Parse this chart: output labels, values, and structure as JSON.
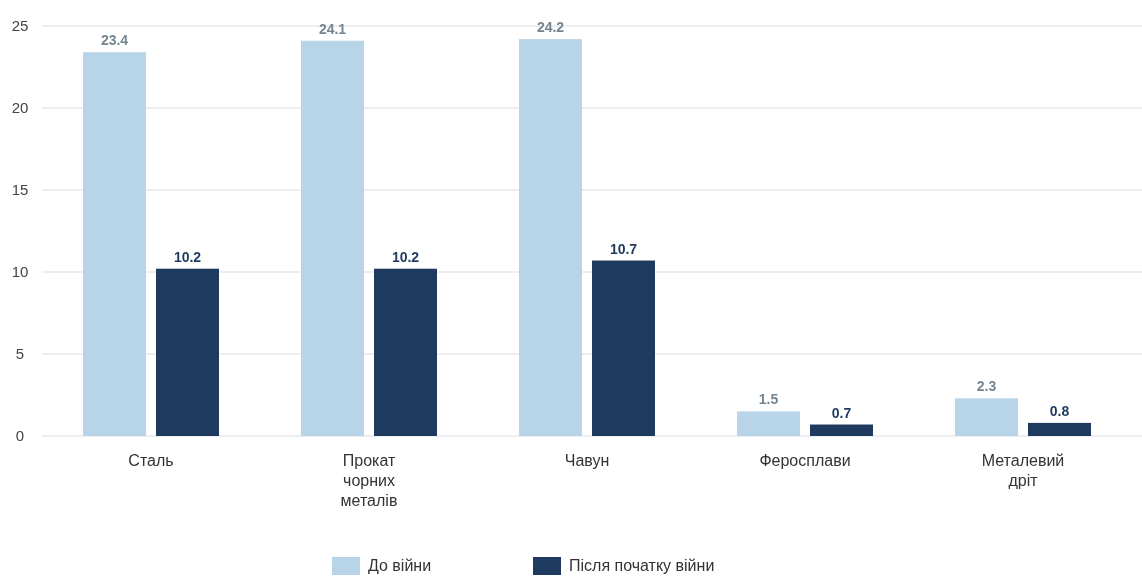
{
  "chart_data": {
    "type": "bar",
    "categories": [
      "Сталь",
      "Прокат чорних металів",
      "Чавун",
      "Феросплави",
      "Металевий дріт"
    ],
    "series": [
      {
        "name": "До війни",
        "color": "#b8d4e8",
        "values": [
          23.4,
          24.1,
          24.2,
          1.5,
          2.3
        ]
      },
      {
        "name": "Після початку війни",
        "color": "#1f3a5f",
        "values": [
          10.2,
          10.2,
          10.7,
          0.7,
          0.8
        ]
      }
    ],
    "ylim": [
      0,
      25
    ],
    "yticks": [
      0,
      5,
      10,
      15,
      20,
      25
    ],
    "grid": "y",
    "legend": "bottom",
    "data_labels": true
  }
}
